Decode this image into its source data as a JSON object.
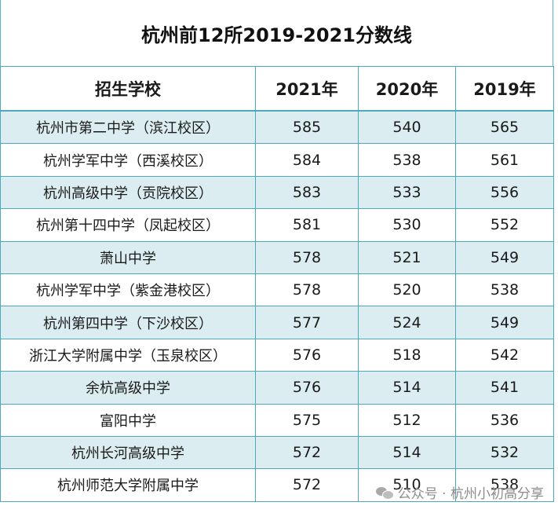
{
  "title": "杭州前12所2019-2021分数线",
  "headers": [
    "招生学校",
    "2021年",
    "2020年",
    "2019年"
  ],
  "rows": [
    {
      "school": "杭州市第二中学（滨江校区）",
      "y2021": "585",
      "y2020": "540",
      "y2019": "565"
    },
    {
      "school": "杭州学军中学（西溪校区）",
      "y2021": "584",
      "y2020": "538",
      "y2019": "561"
    },
    {
      "school": "杭州高级中学（贡院校区）",
      "y2021": "583",
      "y2020": "533",
      "y2019": "556"
    },
    {
      "school": "杭州第十四中学（凤起校区）",
      "y2021": "581",
      "y2020": "530",
      "y2019": "552"
    },
    {
      "school": "萧山中学",
      "y2021": "578",
      "y2020": "521",
      "y2019": "549"
    },
    {
      "school": "杭州学军中学（紫金港校区）",
      "y2021": "578",
      "y2020": "520",
      "y2019": "538"
    },
    {
      "school": "杭州第四中学（下沙校区）",
      "y2021": "577",
      "y2020": "524",
      "y2019": "549"
    },
    {
      "school": "浙江大学附属中学（玉泉校区）",
      "y2021": "576",
      "y2020": "518",
      "y2019": "542"
    },
    {
      "school": "余杭高级中学",
      "y2021": "576",
      "y2020": "514",
      "y2019": "541"
    },
    {
      "school": "富阳中学",
      "y2021": "575",
      "y2020": "512",
      "y2019": "536"
    },
    {
      "school": "杭州长河高级中学",
      "y2021": "572",
      "y2020": "514",
      "y2019": "532"
    },
    {
      "school": "杭州师范大学附属中学",
      "y2021": "572",
      "y2020": "510",
      "y2019": "538"
    }
  ],
  "watermark": {
    "text": "公众号 · 杭州小初高分享",
    "icon": "wechat-icon"
  }
}
